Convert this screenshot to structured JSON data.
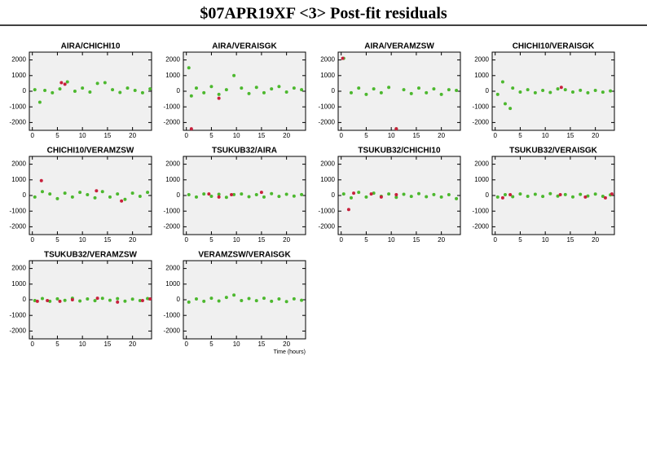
{
  "title": "$07APR19XF <3> Post-fit residuals",
  "chart_data": [
    {
      "type": "scatter",
      "title": "AIRA/CHICHI10",
      "xlim": [
        -0.6,
        23.8
      ],
      "ylim": [
        -2500,
        2500
      ],
      "xticks": [
        0,
        5,
        10,
        15,
        20
      ],
      "yticks": [
        -2000,
        -1000,
        0,
        1000,
        2000
      ],
      "series": [
        {
          "color": "#4cb82e",
          "x": [
            0.5,
            1.5,
            2.5,
            4,
            5.5,
            7,
            8.5,
            10,
            11.5,
            13,
            14.5,
            16,
            17.5,
            19,
            20.5,
            22,
            23.5
          ],
          "values": [
            100,
            -700,
            50,
            -100,
            150,
            600,
            0,
            200,
            -50,
            500,
            550,
            100,
            -80,
            200,
            50,
            -100,
            150
          ]
        },
        {
          "color": "#c8203c",
          "x": [
            5.8,
            6.5
          ],
          "values": [
            550,
            450
          ]
        }
      ]
    },
    {
      "type": "scatter",
      "title": "AIRA/VERAISGK",
      "xlim": [
        -0.6,
        23.8
      ],
      "ylim": [
        -2500,
        2500
      ],
      "xticks": [
        0,
        5,
        10,
        15,
        20
      ],
      "yticks": [
        -2000,
        -1000,
        0,
        1000,
        2000
      ],
      "series": [
        {
          "color": "#4cb82e",
          "x": [
            0.5,
            1,
            2,
            3.5,
            5,
            6.5,
            8,
            9.5,
            11,
            12.5,
            14,
            15.5,
            17,
            18.5,
            20,
            21.5,
            23
          ],
          "values": [
            1500,
            -300,
            200,
            -100,
            300,
            -200,
            100,
            1000,
            200,
            -150,
            250,
            -100,
            150,
            300,
            -50,
            200,
            100
          ]
        },
        {
          "color": "#c8203c",
          "x": [
            1,
            6.5
          ],
          "values": [
            -2400,
            -450
          ]
        }
      ]
    },
    {
      "type": "scatter",
      "title": "AIRA/VERAMZSW",
      "xlim": [
        -0.6,
        23.8
      ],
      "ylim": [
        -2500,
        2500
      ],
      "xticks": [
        0,
        5,
        10,
        15,
        20
      ],
      "yticks": [
        -2000,
        -1000,
        0,
        1000,
        2000
      ],
      "series": [
        {
          "color": "#4cb82e",
          "x": [
            0.5,
            2,
            3.5,
            5,
            6.5,
            8,
            9.5,
            11,
            12.5,
            14,
            15.5,
            17,
            18.5,
            20,
            21.5,
            23
          ],
          "values": [
            2100,
            -100,
            200,
            -200,
            150,
            -100,
            250,
            -2400,
            100,
            -150,
            200,
            -100,
            150,
            -200,
            100,
            50
          ]
        },
        {
          "color": "#c8203c",
          "x": [
            0.3,
            11
          ],
          "values": [
            2100,
            -2400
          ]
        }
      ]
    },
    {
      "type": "scatter",
      "title": "CHICHI10/VERAISGK",
      "xlim": [
        -0.6,
        23.8
      ],
      "ylim": [
        -2500,
        2500
      ],
      "xticks": [
        0,
        5,
        10,
        15,
        20
      ],
      "yticks": [
        -2000,
        -1000,
        0,
        1000,
        2000
      ],
      "series": [
        {
          "color": "#4cb82e",
          "x": [
            0.5,
            1.5,
            2,
            3,
            3.5,
            5,
            6.5,
            8,
            9.5,
            11,
            12.5,
            14,
            15.5,
            17,
            18.5,
            20,
            21.5,
            23
          ],
          "values": [
            -200,
            600,
            -800,
            -1100,
            200,
            -50,
            100,
            -100,
            50,
            -80,
            150,
            100,
            -50,
            60,
            -100,
            50,
            -60,
            20
          ]
        },
        {
          "color": "#c8203c",
          "x": [
            13.2
          ],
          "values": [
            250
          ]
        }
      ]
    },
    {
      "type": "scatter",
      "title": "CHICHI10/VERAMZSW",
      "xlim": [
        -0.6,
        23.8
      ],
      "ylim": [
        -2500,
        2500
      ],
      "xticks": [
        0,
        5,
        10,
        15,
        20
      ],
      "yticks": [
        -2000,
        -1000,
        0,
        1000,
        2000
      ],
      "series": [
        {
          "color": "#4cb82e",
          "x": [
            0.5,
            2,
            3.5,
            5,
            6.5,
            8,
            9.5,
            11,
            12.5,
            14,
            15.5,
            17,
            18.5,
            20,
            21.5,
            23
          ],
          "values": [
            -100,
            250,
            100,
            -200,
            150,
            -100,
            200,
            50,
            -150,
            250,
            -100,
            100,
            -250,
            150,
            -50,
            200
          ]
        },
        {
          "color": "#c8203c",
          "x": [
            1.8,
            12.8,
            17.8
          ],
          "values": [
            950,
            300,
            -350
          ]
        }
      ]
    },
    {
      "type": "scatter",
      "title": "TSUKUB32/AIRA",
      "xlim": [
        -0.6,
        23.8
      ],
      "ylim": [
        -2500,
        2500
      ],
      "xticks": [
        0,
        5,
        10,
        15,
        20
      ],
      "yticks": [
        -2000,
        -1000,
        0,
        1000,
        2000
      ],
      "series": [
        {
          "color": "#4cb82e",
          "x": [
            0.5,
            2,
            3.5,
            5,
            6.5,
            8,
            9.5,
            11,
            12.5,
            14,
            15.5,
            17,
            18.5,
            20,
            21.5,
            23
          ],
          "values": [
            50,
            -100,
            100,
            -50,
            80,
            -120,
            60,
            100,
            -80,
            50,
            -100,
            120,
            -60,
            80,
            -40,
            60
          ]
        },
        {
          "color": "#c8203c",
          "x": [
            4.5,
            6.5,
            9,
            15
          ],
          "values": [
            100,
            -100,
            50,
            200
          ]
        }
      ]
    },
    {
      "type": "scatter",
      "title": "TSUKUB32/CHICHI10",
      "xlim": [
        -0.6,
        23.8
      ],
      "ylim": [
        -2500,
        2500
      ],
      "xticks": [
        0,
        5,
        10,
        15,
        20
      ],
      "yticks": [
        -2000,
        -1000,
        0,
        1000,
        2000
      ],
      "series": [
        {
          "color": "#4cb82e",
          "x": [
            0.5,
            2,
            3.5,
            5,
            6.5,
            8,
            9.5,
            11,
            12.5,
            14,
            15.5,
            17,
            18.5,
            20,
            21.5,
            23
          ],
          "values": [
            100,
            -150,
            200,
            -100,
            150,
            -50,
            100,
            -120,
            80,
            -60,
            120,
            -80,
            60,
            -100,
            50,
            -200
          ]
        },
        {
          "color": "#c8203c",
          "x": [
            1.5,
            2.5,
            6,
            8,
            11
          ],
          "values": [
            -900,
            150,
            100,
            -100,
            50
          ]
        }
      ]
    },
    {
      "type": "scatter",
      "title": "TSUKUB32/VERAISGK",
      "xlim": [
        -0.6,
        23.8
      ],
      "ylim": [
        -2500,
        2500
      ],
      "xticks": [
        0,
        5,
        10,
        15,
        20
      ],
      "yticks": [
        -2000,
        -1000,
        0,
        1000,
        2000
      ],
      "series": [
        {
          "color": "#4cb82e",
          "x": [
            0.5,
            2,
            3.5,
            5,
            6.5,
            8,
            9.5,
            11,
            12.5,
            14,
            15.5,
            17,
            18.5,
            20,
            21.5,
            23
          ],
          "values": [
            -100,
            50,
            -80,
            100,
            -50,
            80,
            -60,
            120,
            -40,
            60,
            -90,
            70,
            -30,
            90,
            -50,
            40
          ]
        },
        {
          "color": "#c8203c",
          "x": [
            1.5,
            3,
            13,
            18,
            22,
            23.3
          ],
          "values": [
            -150,
            50,
            50,
            -100,
            -150,
            100
          ]
        }
      ]
    },
    {
      "type": "scatter",
      "title": "TSUKUB32/VERAMZSW",
      "xlim": [
        -0.6,
        23.8
      ],
      "ylim": [
        -2500,
        2500
      ],
      "xticks": [
        0,
        5,
        10,
        15,
        20
      ],
      "yticks": [
        -2000,
        -1000,
        0,
        1000,
        2000
      ],
      "series": [
        {
          "color": "#4cb82e",
          "x": [
            0.5,
            2,
            3.5,
            5,
            6.5,
            8,
            9.5,
            11,
            12.5,
            14,
            15.5,
            17,
            18.5,
            20,
            21.5,
            23
          ],
          "values": [
            -50,
            80,
            -100,
            60,
            -40,
            100,
            -80,
            50,
            -60,
            90,
            -30,
            70,
            -90,
            40,
            -50,
            80
          ]
        },
        {
          "color": "#c8203c",
          "x": [
            1,
            3,
            5.5,
            8,
            13,
            17,
            22,
            23.5
          ],
          "values": [
            -100,
            -50,
            -100,
            0,
            100,
            -150,
            -50,
            50
          ]
        }
      ]
    },
    {
      "type": "scatter",
      "title": "VERAMZSW/VERAISGK",
      "xlim": [
        -0.6,
        23.8
      ],
      "ylim": [
        -2500,
        2500
      ],
      "xticks": [
        0,
        5,
        10,
        15,
        20
      ],
      "yticks": [
        -2000,
        -1000,
        0,
        1000,
        2000
      ],
      "x_label": "Time (hours)",
      "series": [
        {
          "color": "#4cb82e",
          "x": [
            0.5,
            2,
            3.5,
            5,
            6.5,
            8,
            9.5,
            11,
            12.5,
            14,
            15.5,
            17,
            18.5,
            20,
            21.5,
            23
          ],
          "values": [
            -150,
            50,
            -100,
            100,
            -80,
            150,
            300,
            -50,
            80,
            -60,
            100,
            -100,
            50,
            -120,
            60,
            -30
          ]
        }
      ]
    }
  ]
}
